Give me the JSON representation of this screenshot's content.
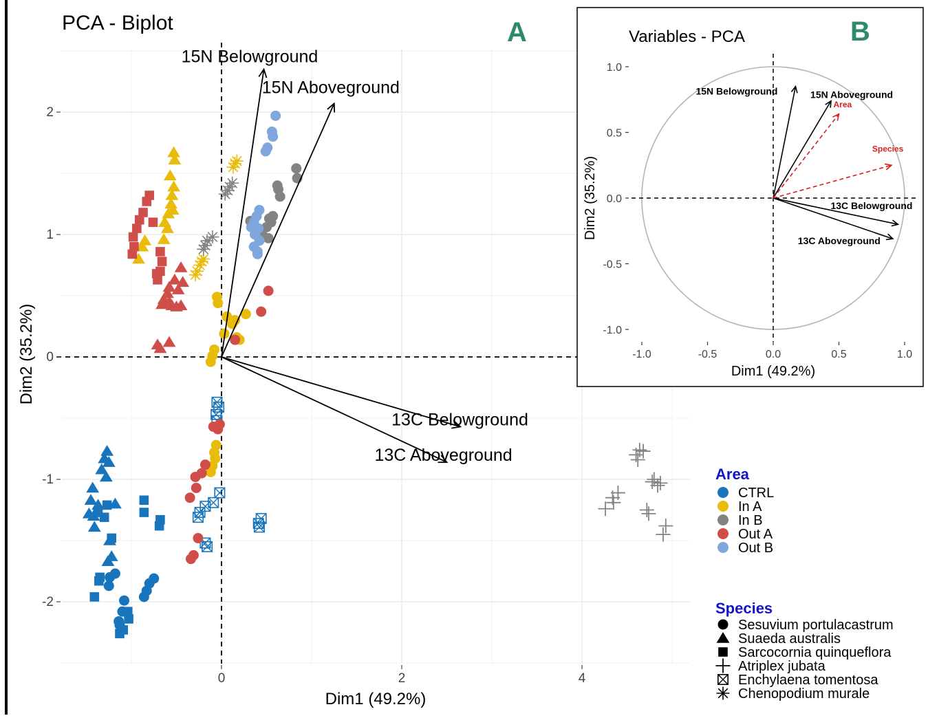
{
  "panels": [
    {
      "type": "scatter",
      "title": "PCA - Biplot",
      "panel_letter": "A",
      "xlabel": "Dim1 (49.2%)",
      "ylabel": "Dim2 (35.2%)",
      "xlim": [
        -1.75,
        5.2
      ],
      "ylim": [
        -2.5,
        2.6
      ],
      "xticks": [
        0,
        2,
        4
      ],
      "yticks": [
        -2,
        -1,
        0,
        1,
        2
      ],
      "grid": true,
      "vectors": [
        {
          "label": "15N Belowground",
          "x": 0.47,
          "y": 2.35
        },
        {
          "label": "15N Aboveground",
          "x": 1.25,
          "y": 2.07
        },
        {
          "label": "13C Belowground",
          "x": 2.65,
          "y": -0.57
        },
        {
          "label": "13C Aboveground",
          "x": 2.5,
          "y": -0.86
        }
      ],
      "groups": [
        {
          "area": "CTRL",
          "species": "Suaeda australis",
          "points": [
            [
              -1.27,
              -0.77
            ],
            [
              -1.3,
              -0.83
            ],
            [
              -1.25,
              -0.86
            ],
            [
              -1.33,
              -0.92
            ],
            [
              -1.28,
              -0.98
            ],
            [
              -1.43,
              -1.07
            ],
            [
              -1.45,
              -1.17
            ],
            [
              -1.37,
              -1.21
            ],
            [
              -1.47,
              -1.28
            ],
            [
              -1.41,
              -1.39
            ],
            [
              -1.24,
              -1.5
            ],
            [
              -1.22,
              -1.63
            ],
            [
              -1.26,
              -1.67
            ],
            [
              -1.18,
              -1.2
            ],
            [
              -1.42,
              -1.3
            ]
          ]
        },
        {
          "area": "CTRL",
          "species": "Sarcocornia quinqueflora",
          "points": [
            [
              -1.37,
              -1.27
            ],
            [
              -1.3,
              -1.31
            ],
            [
              -1.27,
              -1.21
            ],
            [
              -0.86,
              -1.17
            ],
            [
              -0.86,
              -1.27
            ],
            [
              -0.68,
              -1.33
            ],
            [
              -0.69,
              -1.38
            ],
            [
              -1.22,
              -1.48
            ],
            [
              -1.35,
              -1.8
            ],
            [
              -1.36,
              -1.83
            ],
            [
              -1.41,
              -1.96
            ],
            [
              -1.04,
              -2.08
            ],
            [
              -1.03,
              -2.14
            ],
            [
              -1.09,
              -2.23
            ],
            [
              -1.13,
              -2.26
            ]
          ]
        },
        {
          "area": "CTRL",
          "species": "Sesuvium portulacastrum",
          "points": [
            [
              -1.18,
              -1.77
            ],
            [
              -1.24,
              -1.8
            ],
            [
              -1.25,
              -1.87
            ],
            [
              -0.75,
              -1.81
            ],
            [
              -0.8,
              -1.85
            ],
            [
              -0.83,
              -1.91
            ],
            [
              -0.86,
              -1.96
            ],
            [
              -1.08,
              -1.99
            ],
            [
              -1.1,
              -2.08
            ],
            [
              -1.14,
              -2.16
            ],
            [
              -1.13,
              -2.19
            ]
          ]
        },
        {
          "area": "CTRL",
          "species": "Enchylaena tomentosa",
          "points": [
            [
              -0.05,
              -0.37
            ],
            [
              -0.03,
              -0.41
            ],
            [
              -0.06,
              -0.47
            ],
            [
              -0.05,
              -0.52
            ],
            [
              -0.02,
              -1.11
            ],
            [
              -0.09,
              -1.19
            ],
            [
              -0.18,
              -1.22
            ],
            [
              -0.24,
              -1.27
            ],
            [
              -0.26,
              -1.31
            ],
            [
              -0.18,
              -1.52
            ],
            [
              -0.16,
              -1.55
            ],
            [
              0.44,
              -1.32
            ],
            [
              0.41,
              -1.36
            ],
            [
              0.42,
              -1.39
            ]
          ]
        },
        {
          "area": "In A",
          "species": "Suaeda australis",
          "points": [
            [
              -0.53,
              1.67
            ],
            [
              -0.52,
              1.61
            ],
            [
              -0.57,
              1.48
            ],
            [
              -0.53,
              1.39
            ],
            [
              -0.55,
              1.32
            ],
            [
              -0.56,
              1.25
            ],
            [
              -0.59,
              1.17
            ],
            [
              -0.64,
              0.96
            ],
            [
              -0.88,
              0.9
            ],
            [
              -0.92,
              0.8
            ],
            [
              -0.63,
              1.1
            ],
            [
              -0.54,
              1.2
            ],
            [
              -0.85,
              0.95
            ],
            [
              -0.6,
              1.05
            ]
          ]
        },
        {
          "area": "In A",
          "species": "Chenopodium murale",
          "points": [
            [
              0.15,
              1.58
            ],
            [
              0.13,
              1.55
            ],
            [
              0.17,
              1.6
            ],
            [
              -0.2,
              0.8
            ],
            [
              -0.24,
              0.75
            ],
            [
              -0.27,
              0.7
            ],
            [
              -0.29,
              0.67
            ],
            [
              -0.22,
              0.78
            ]
          ]
        },
        {
          "area": "In A",
          "species": "Sesuvium portulacastrum",
          "points": [
            [
              -0.05,
              0.49
            ],
            [
              -0.04,
              0.44
            ],
            [
              0.06,
              0.33
            ],
            [
              0.12,
              0.27
            ],
            [
              0.15,
              0.3
            ],
            [
              0.27,
              0.35
            ],
            [
              0.17,
              0.16
            ],
            [
              0.2,
              0.14
            ],
            [
              0.03,
              0.19
            ],
            [
              -0.08,
              0.06
            ],
            [
              -0.1,
              0.01
            ],
            [
              -0.12,
              -0.04
            ],
            [
              -0.06,
              -0.72
            ],
            [
              -0.08,
              -0.78
            ],
            [
              -0.07,
              -0.83
            ],
            [
              -0.1,
              -0.89
            ],
            [
              -0.12,
              -0.94
            ]
          ]
        },
        {
          "area": "In B",
          "species": "Sesuvium portulacastrum",
          "points": [
            [
              0.83,
              1.54
            ],
            [
              0.84,
              1.46
            ],
            [
              0.62,
              1.4
            ],
            [
              0.63,
              1.37
            ],
            [
              0.65,
              1.31
            ],
            [
              0.32,
              1.11
            ],
            [
              0.55,
              1.1
            ],
            [
              0.53,
              1.13
            ],
            [
              0.57,
              1.15
            ],
            [
              0.5,
              1.06
            ],
            [
              0.45,
              1.0
            ],
            [
              0.52,
              0.97
            ]
          ]
        },
        {
          "area": "In B",
          "species": "Chenopodium murale",
          "points": [
            [
              0.12,
              1.42
            ],
            [
              0.07,
              1.36
            ],
            [
              0.04,
              1.33
            ],
            [
              0.09,
              1.39
            ],
            [
              -0.16,
              0.95
            ],
            [
              -0.1,
              0.98
            ],
            [
              -0.18,
              0.91
            ],
            [
              -0.2,
              0.88
            ]
          ]
        },
        {
          "area": "Out A",
          "species": "Sarcocornia quinqueflora",
          "points": [
            [
              -0.83,
              1.27
            ],
            [
              -0.8,
              1.32
            ],
            [
              -0.87,
              1.18
            ],
            [
              -0.94,
              1.05
            ],
            [
              -0.98,
              0.98
            ],
            [
              -0.97,
              0.9
            ],
            [
              -0.99,
              0.84
            ],
            [
              -0.68,
              0.86
            ],
            [
              -0.66,
              0.78
            ],
            [
              -0.68,
              0.7
            ],
            [
              -0.71,
              0.63
            ],
            [
              -0.72,
              0.68
            ],
            [
              -0.76,
              1.1
            ],
            [
              -0.91,
              1.12
            ]
          ]
        },
        {
          "area": "Out A",
          "species": "Suaeda australis",
          "points": [
            [
              -0.45,
              0.73
            ],
            [
              -0.52,
              0.63
            ],
            [
              -0.58,
              0.57
            ],
            [
              -0.6,
              0.52
            ],
            [
              -0.64,
              0.47
            ],
            [
              -0.58,
              0.45
            ],
            [
              -0.66,
              0.43
            ],
            [
              -0.55,
              0.42
            ],
            [
              -0.5,
              0.41
            ],
            [
              -0.45,
              0.42
            ],
            [
              -0.43,
              0.61
            ],
            [
              -0.48,
              0.55
            ],
            [
              -0.71,
              0.1
            ],
            [
              -0.58,
              0.12
            ],
            [
              -0.68,
              0.07
            ]
          ]
        },
        {
          "area": "Out A",
          "species": "Sesuvium portulacastrum",
          "points": [
            [
              0.52,
              0.54
            ],
            [
              0.44,
              0.37
            ],
            [
              0.15,
              0.14
            ],
            [
              -0.02,
              -0.55
            ],
            [
              -0.04,
              -0.59
            ],
            [
              -0.09,
              -0.57
            ],
            [
              -0.18,
              -0.88
            ],
            [
              -0.22,
              -0.95
            ],
            [
              -0.29,
              -0.98
            ],
            [
              -0.28,
              -1.07
            ],
            [
              -0.35,
              -1.15
            ],
            [
              -0.26,
              -1.48
            ],
            [
              -0.31,
              -1.62
            ],
            [
              -0.34,
              -1.65
            ]
          ]
        },
        {
          "area": "Out B",
          "species": "Sesuvium portulacastrum",
          "points": [
            [
              0.6,
              1.97
            ],
            [
              0.56,
              1.84
            ],
            [
              0.57,
              1.8
            ],
            [
              0.51,
              1.71
            ],
            [
              0.49,
              1.68
            ],
            [
              0.42,
              1.2
            ],
            [
              0.39,
              1.15
            ],
            [
              0.36,
              1.1
            ],
            [
              0.41,
              1.05
            ],
            [
              0.37,
              1.0
            ],
            [
              0.42,
              0.95
            ],
            [
              0.36,
              0.9
            ],
            [
              0.4,
              0.86
            ],
            [
              0.4,
              0.84
            ],
            [
              0.33,
              1.06
            ]
          ]
        },
        {
          "area": "In B",
          "species": "Atriplex jubata",
          "points": [
            [
              4.68,
              -0.77
            ],
            [
              4.6,
              -0.8
            ],
            [
              4.62,
              -0.84
            ],
            [
              4.64,
              -0.76
            ],
            [
              4.78,
              -1.02
            ],
            [
              4.84,
              -1.05
            ],
            [
              4.8,
              -1.0
            ],
            [
              4.87,
              -1.03
            ],
            [
              4.4,
              -1.11
            ],
            [
              4.34,
              -1.15
            ],
            [
              4.35,
              -1.19
            ],
            [
              4.26,
              -1.24
            ],
            [
              4.72,
              -1.25
            ],
            [
              4.74,
              -1.28
            ],
            [
              4.93,
              -1.38
            ],
            [
              4.9,
              -1.45
            ]
          ]
        }
      ],
      "legend": {
        "area_title": "Area",
        "area_entries": [
          {
            "label": "CTRL",
            "color": "#1875bc"
          },
          {
            "label": "In A",
            "color": "#e9bb0b"
          },
          {
            "label": "In B",
            "color": "#838383"
          },
          {
            "label": "Out A",
            "color": "#cf4e4a"
          },
          {
            "label": "Out B",
            "color": "#80a7dd"
          }
        ],
        "species_title": "Species",
        "species_entries": [
          {
            "label": "Sesuvium portulacastrum",
            "shape": "circle"
          },
          {
            "label": "Suaeda australis",
            "shape": "triangle"
          },
          {
            "label": "Sarcocornia quinqueflora",
            "shape": "square"
          },
          {
            "label": "Atriplex jubata",
            "shape": "plus"
          },
          {
            "label": "Enchylaena tomentosa",
            "shape": "boxcross"
          },
          {
            "label": "Chenopodium murale",
            "shape": "asterisk"
          }
        ],
        "title_color": "#1414c8"
      },
      "letter_color": "#2e8b6a"
    },
    {
      "type": "line",
      "title": "Variables - PCA",
      "panel_letter": "B",
      "xlabel": "Dim1 (49.2%)",
      "ylabel": "Dim2 (35.2%)",
      "xlim": [
        -1.1,
        1.1
      ],
      "ylim": [
        -1.1,
        1.1
      ],
      "xticks": [
        "-1.0",
        "-0.5",
        "0.0",
        "0.5",
        "1.0"
      ],
      "yticks": [
        "-1.0",
        "-0.5",
        "0.0",
        "0.5",
        "1.0"
      ],
      "grid": false,
      "vectors": [
        {
          "label": "15N Belowground",
          "x": 0.17,
          "y": 0.85,
          "style": "solid",
          "color": "#000000"
        },
        {
          "label": "15N Aboveground",
          "x": 0.44,
          "y": 0.74,
          "style": "solid",
          "color": "#000000"
        },
        {
          "label": "13C Belowground",
          "x": 0.95,
          "y": -0.2,
          "style": "solid",
          "color": "#000000"
        },
        {
          "label": "13C Aboveground",
          "x": 0.91,
          "y": -0.31,
          "style": "solid",
          "color": "#000000"
        },
        {
          "label": "Area",
          "x": 0.5,
          "y": 0.64,
          "style": "dashed",
          "color": "#d42020"
        },
        {
          "label": "Species",
          "x": 0.9,
          "y": 0.25,
          "style": "dashed",
          "color": "#d42020"
        }
      ],
      "letter_color": "#2e8b6a"
    }
  ]
}
